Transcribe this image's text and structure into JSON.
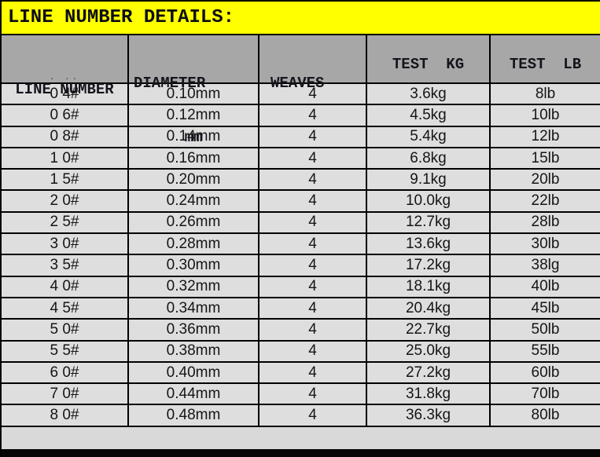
{
  "title": "LINE NUMBER DETAILS:",
  "colors": {
    "title_bar_bg": "#ffff00",
    "title_text": "#0d0d12",
    "header_bg": "#a7a7a7",
    "row_bg": "#dedede",
    "footer_bg": "#d9d9d9",
    "grid_line": "#000000",
    "bottom_bar": "#060606"
  },
  "table": {
    "headers": [
      {
        "line1": "LINE NUMBER",
        "line2": ""
      },
      {
        "line1": "DIAMETER",
        "line2": "mm"
      },
      {
        "line1": "WEAVES",
        "line2": ""
      },
      {
        "line1": "TEST  KG",
        "line2": ""
      },
      {
        "line1": "TEST  LB",
        "line2": ""
      }
    ],
    "header_artifact": ". .."
  },
  "chart_data": {
    "type": "table",
    "title": "LINE NUMBER DETAILS:",
    "columns": [
      "LINE NUMBER",
      "DIAMETER mm",
      "WEAVES",
      "TEST KG",
      "TEST LB"
    ],
    "rows": [
      [
        "0 4#",
        "0.10mm",
        "4",
        "3.6kg",
        "8lb"
      ],
      [
        "0 6#",
        "0.12mm",
        "4",
        "4.5kg",
        "10lb"
      ],
      [
        "0 8#",
        "0.14mm",
        "4",
        "5.4kg",
        "12lb"
      ],
      [
        "1 0#",
        "0.16mm",
        "4",
        "6.8kg",
        "15lb"
      ],
      [
        "1 5#",
        "0.20mm",
        "4",
        "9.1kg",
        "20lb"
      ],
      [
        "2 0#",
        "0.24mm",
        "4",
        "10.0kg",
        "22lb"
      ],
      [
        "2 5#",
        "0.26mm",
        "4",
        "12.7kg",
        "28lb"
      ],
      [
        "3 0#",
        "0.28mm",
        "4",
        "13.6kg",
        "30lb"
      ],
      [
        "3 5#",
        "0.30mm",
        "4",
        "17.2kg",
        "38lg"
      ],
      [
        "4 0#",
        "0.32mm",
        "4",
        "18.1kg",
        "40lb"
      ],
      [
        "4 5#",
        "0.34mm",
        "4",
        "20.4kg",
        "45lb"
      ],
      [
        "5 0#",
        "0.36mm",
        "4",
        "22.7kg",
        "50lb"
      ],
      [
        "5 5#",
        "0.38mm",
        "4",
        "25.0kg",
        "55lb"
      ],
      [
        "6 0#",
        "0.40mm",
        "4",
        "27.2kg",
        "60lb"
      ],
      [
        "7 0#",
        "0.44mm",
        "4",
        "31.8kg",
        "70lb"
      ],
      [
        "8 0#",
        "0.48mm",
        "4",
        "36.3kg",
        "80lb"
      ]
    ]
  }
}
